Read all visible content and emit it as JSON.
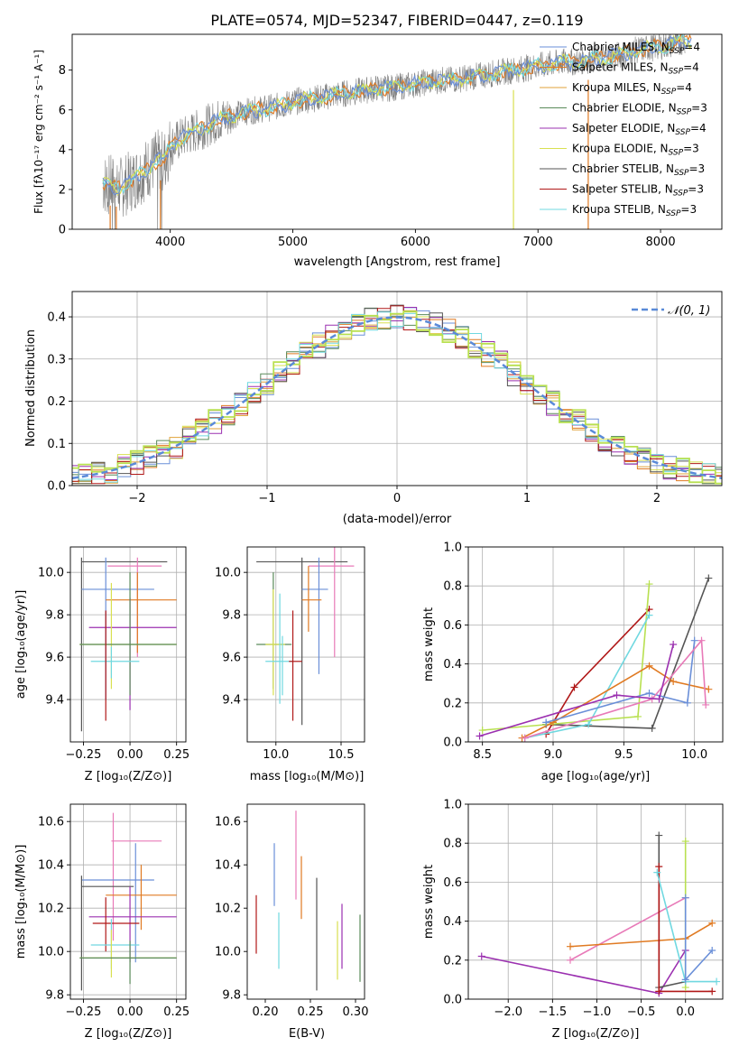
{
  "figure_title": "PLATE=0574, MJD=52347, FIBERID=0447, z=0.119",
  "colors": {
    "chabrier_miles": "#6a8fd8",
    "salpeter_miles": "#e07a22",
    "kroupa_miles": "#e0a23a",
    "chabrier_elodie": "#5a8a5a",
    "salpeter_elodie": "#9b30b0",
    "kroupa_elodie": "#d8e050",
    "chabrier_stelib": "#555555",
    "salpeter_stelib": "#b01818",
    "kroupa_stelib": "#70d8e0",
    "pink": "#e87ab8",
    "lime": "#b8e050",
    "data_grey": "#808080",
    "normal": "#5a8ad8"
  },
  "chart_data": [
    {
      "id": "spectrum",
      "type": "line",
      "xlabel": "wavelength [Angstrom, rest frame]",
      "ylabel": "Flux [fλ10⁻¹⁷ erg cm⁻² s⁻¹ A⁻¹]",
      "xlim": [
        3200,
        8500
      ],
      "ylim": [
        0,
        9.8
      ],
      "xticks": [
        "4000",
        "5000",
        "6000",
        "7000",
        "8000"
      ],
      "yticks": [
        "0",
        "2",
        "4",
        "6",
        "8"
      ],
      "data_x": [
        3450,
        3500,
        3600,
        3700,
        3800,
        3900,
        3950,
        4000,
        4100,
        4200,
        4300,
        4400,
        4500,
        4600,
        4700,
        4800,
        4900,
        5000,
        5100,
        5200,
        5300,
        5400,
        5500,
        5600,
        5700,
        5800,
        5900,
        6000,
        6100,
        6200,
        6300,
        6400,
        6500,
        6600,
        6700,
        6800,
        6900,
        7000,
        7100,
        7200,
        7300,
        7400,
        7500,
        7600,
        7700,
        7800,
        7900,
        8000,
        8100,
        8200
      ],
      "data_y": [
        2.3,
        2.2,
        2.1,
        2.5,
        3.0,
        3.5,
        3.4,
        4.2,
        4.6,
        4.9,
        5.2,
        5.5,
        5.7,
        5.9,
        6.0,
        6.1,
        6.2,
        6.4,
        6.5,
        6.6,
        6.7,
        6.8,
        6.9,
        7.0,
        7.1,
        7.1,
        7.2,
        7.3,
        7.4,
        7.5,
        7.5,
        7.6,
        7.7,
        7.8,
        7.9,
        8.0,
        8.1,
        8.2,
        8.3,
        8.4,
        8.4,
        8.5,
        8.6,
        8.7,
        8.8,
        9.0,
        9.1,
        9.2,
        9.3,
        9.5
      ],
      "legend": [
        {
          "label": "Chabrier MILES, N",
          "sub": "SSP",
          "tail": "=4",
          "color": "chabrier_miles"
        },
        {
          "label": "Salpeter MILES, N",
          "sub": "SSP",
          "tail": "=4",
          "color": "salpeter_miles"
        },
        {
          "label": "Kroupa MILES, N",
          "sub": "SSP",
          "tail": "=4",
          "color": "kroupa_miles"
        },
        {
          "label": "Chabrier ELODIE, N",
          "sub": "SSP",
          "tail": "=3",
          "color": "chabrier_elodie"
        },
        {
          "label": "Salpeter ELODIE, N",
          "sub": "SSP",
          "tail": "=4",
          "color": "salpeter_elodie"
        },
        {
          "label": "Kroupa ELODIE, N",
          "sub": "SSP",
          "tail": "=3",
          "color": "kroupa_elodie"
        },
        {
          "label": "Chabrier STELIB, N",
          "sub": "SSP",
          "tail": "=3",
          "color": "chabrier_stelib"
        },
        {
          "label": "Salpeter STELIB, N",
          "sub": "SSP",
          "tail": "=3",
          "color": "salpeter_stelib"
        },
        {
          "label": "Kroupa STELIB, N",
          "sub": "SSP",
          "tail": "=3",
          "color": "kroupa_stelib"
        }
      ]
    },
    {
      "id": "residuals",
      "type": "histogram",
      "xlabel": "(data-model)/error",
      "ylabel": "Normed distribution",
      "xlim": [
        -2.5,
        2.5
      ],
      "ylim": [
        0,
        0.46
      ],
      "xticks": [
        "−2",
        "−1",
        "0",
        "1",
        "2"
      ],
      "yticks": [
        "0.0",
        "0.1",
        "0.2",
        "0.3",
        "0.4"
      ],
      "legend": "𝒩(0, 1)",
      "grid": true
    },
    {
      "id": "age_vs_Z",
      "type": "scatter",
      "xlabel": "Z [log₁₀(Z/Z⊙)]",
      "ylabel": "age  [log₁₀(age/yr)]",
      "xlim": [
        -0.32,
        0.3
      ],
      "ylim": [
        9.2,
        10.12
      ],
      "xticks": [
        "−0.25",
        "0.00",
        "0.25"
      ],
      "yticks": [
        "9.4",
        "9.6",
        "9.8",
        "10.0"
      ],
      "grid": true
    },
    {
      "id": "age_vs_mass",
      "type": "scatter",
      "xlabel": "mass [log₁₀(M/M⊙)]",
      "ylabel": "",
      "xlim": [
        9.78,
        10.68
      ],
      "ylim": [
        9.2,
        10.12
      ],
      "xticks": [
        "10.0",
        "10.5"
      ],
      "yticks": [
        "9.4",
        "9.6",
        "9.8",
        "10.0"
      ],
      "grid": true
    },
    {
      "id": "weight_vs_age",
      "type": "line",
      "xlabel": "age  [log₁₀(age/yr)]",
      "ylabel": "mass weight",
      "xlim": [
        8.4,
        10.2
      ],
      "ylim": [
        0,
        1
      ],
      "xticks": [
        "8.5",
        "9.0",
        "9.5",
        "10.0"
      ],
      "yticks": [
        "0.0",
        "0.2",
        "0.4",
        "0.6",
        "0.8",
        "1.0"
      ],
      "grid": true
    },
    {
      "id": "mass_vs_Z",
      "type": "scatter",
      "xlabel": "Z [log₁₀(Z/Z⊙)]",
      "ylabel": "mass [log₁₀(M/M⊙)]",
      "xlim": [
        -0.32,
        0.3
      ],
      "ylim": [
        9.78,
        10.68
      ],
      "xticks": [
        "−0.25",
        "0.00",
        "0.25"
      ],
      "yticks": [
        "9.8",
        "10.0",
        "10.2",
        "10.4",
        "10.6"
      ],
      "grid": true
    },
    {
      "id": "mass_vs_ebv",
      "type": "scatter",
      "xlabel": "E(B-V)",
      "ylabel": "",
      "xlim": [
        0.18,
        0.31
      ],
      "ylim": [
        9.78,
        10.68
      ],
      "xticks": [
        "0.20",
        "0.25",
        "0.30"
      ],
      "yticks": [
        "9.8",
        "10.0",
        "10.2",
        "10.4",
        "10.6"
      ],
      "grid": false
    },
    {
      "id": "weight_vs_Z",
      "type": "line",
      "xlabel": "Z [log₁₀(Z/Z⊙)]",
      "ylabel": "mass weight",
      "xlim": [
        -2.45,
        0.42
      ],
      "ylim": [
        0,
        1
      ],
      "xticks": [
        "−2.0",
        "−1.5",
        "−1.0",
        "−0.5",
        "0.0"
      ],
      "yticks": [
        "0.0",
        "0.2",
        "0.4",
        "0.6",
        "0.8",
        "1.0"
      ],
      "grid": true
    }
  ],
  "errorbars": {
    "age_vs_Z": [
      {
        "c": "chabrier_stelib",
        "x": -0.26,
        "y": 10.05,
        "xe": [
          -0.26,
          0.2
        ],
        "ye": [
          9.25,
          10.07
        ]
      },
      {
        "c": "pink",
        "x": 0.04,
        "y": 10.03,
        "xe": [
          -0.12,
          0.17
        ],
        "ye": [
          9.6,
          10.07
        ]
      },
      {
        "c": "chabrier_miles",
        "x": -0.13,
        "y": 9.92,
        "xe": [
          -0.26,
          0.13
        ],
        "ye": [
          9.4,
          10.07
        ]
      },
      {
        "c": "salpeter_miles",
        "x": 0.04,
        "y": 9.87,
        "xe": [
          -0.13,
          0.25
        ],
        "ye": [
          9.62,
          10.0
        ]
      },
      {
        "c": "salpeter_elodie",
        "x": 0.0,
        "y": 9.74,
        "xe": [
          -0.22,
          0.25
        ],
        "ye": [
          9.35,
          9.88
        ]
      },
      {
        "c": "kroupa_elodie",
        "x": -0.1,
        "y": 9.66,
        "xe": [
          -0.27,
          0.25
        ],
        "ye": [
          9.45,
          9.95
        ]
      },
      {
        "c": "chabrier_elodie",
        "x": 0.0,
        "y": 9.66,
        "xe": [
          -0.27,
          0.25
        ],
        "ye": [
          9.42,
          10.0
        ]
      },
      {
        "c": "kroupa_stelib",
        "x": -0.1,
        "y": 9.58,
        "xe": [
          -0.21,
          0.05
        ],
        "ye": [
          9.5,
          9.65
        ]
      },
      {
        "c": "salpeter_stelib",
        "x": -0.13,
        "y": 9.45,
        "xe": [
          -0.13,
          -0.13
        ],
        "ye": [
          9.3,
          9.82
        ]
      }
    ],
    "age_vs_mass": [
      {
        "c": "chabrier_stelib",
        "x": 10.2,
        "y": 10.05,
        "xe": [
          9.85,
          10.55
        ],
        "ye": [
          9.28,
          10.07
        ]
      },
      {
        "c": "pink",
        "x": 10.45,
        "y": 10.03,
        "xe": [
          10.25,
          10.6
        ],
        "ye": [
          9.6,
          10.12
        ]
      },
      {
        "c": "chabrier_miles",
        "x": 10.33,
        "y": 9.92,
        "xe": [
          10.2,
          10.4
        ],
        "ye": [
          9.52,
          10.07
        ]
      },
      {
        "c": "salpeter_miles",
        "x": 10.25,
        "y": 9.87,
        "xe": [
          10.2,
          10.35
        ],
        "ye": [
          9.72,
          10.03
        ]
      },
      {
        "c": "chabrier_elodie",
        "x": 9.98,
        "y": 9.66,
        "xe": [
          9.85,
          10.12
        ],
        "ye": [
          9.45,
          10.0
        ]
      },
      {
        "c": "kroupa_elodie",
        "x": 9.98,
        "y": 9.66,
        "xe": [
          9.92,
          10.07
        ],
        "ye": [
          9.42,
          9.92
        ]
      },
      {
        "c": "kroupa_stelib",
        "x": 10.05,
        "y": 9.58,
        "xe": [
          9.92,
          10.13
        ],
        "ye": [
          9.42,
          9.7
        ]
      },
      {
        "c": "salpeter_stelib",
        "x": 10.13,
        "y": 9.58,
        "xe": [
          10.1,
          10.2
        ],
        "ye": [
          9.3,
          9.82
        ]
      },
      {
        "c": "kroupa_stelib",
        "x": 10.03,
        "y": 9.58,
        "xe": [
          10.03,
          10.03
        ],
        "ye": [
          9.38,
          9.9
        ]
      }
    ],
    "mass_vs_Z": [
      {
        "c": "pink",
        "x": -0.09,
        "y": 10.51,
        "xe": [
          -0.1,
          0.17
        ],
        "ye": [
          10.05,
          10.64
        ]
      },
      {
        "c": "chabrier_miles",
        "x": 0.03,
        "y": 10.33,
        "xe": [
          -0.26,
          0.13
        ],
        "ye": [
          9.95,
          10.5
        ]
      },
      {
        "c": "chabrier_stelib",
        "x": -0.26,
        "y": 10.3,
        "xe": [
          -0.26,
          0.02
        ],
        "ye": [
          9.82,
          10.35
        ]
      },
      {
        "c": "salpeter_miles",
        "x": 0.06,
        "y": 10.26,
        "xe": [
          -0.13,
          0.25
        ],
        "ye": [
          10.1,
          10.4
        ]
      },
      {
        "c": "salpeter_elodie",
        "x": 0.0,
        "y": 10.16,
        "xe": [
          -0.22,
          0.25
        ],
        "ye": [
          9.95,
          10.3
        ]
      },
      {
        "c": "salpeter_stelib",
        "x": -0.13,
        "y": 10.13,
        "xe": [
          -0.2,
          0.05
        ],
        "ye": [
          10.0,
          10.25
        ]
      },
      {
        "c": "kroupa_stelib",
        "x": -0.1,
        "y": 10.03,
        "xe": [
          -0.21,
          0.05
        ],
        "ye": [
          9.92,
          10.15
        ]
      },
      {
        "c": "kroupa_elodie",
        "x": -0.1,
        "y": 9.97,
        "xe": [
          -0.27,
          0.25
        ],
        "ye": [
          9.88,
          10.1
        ]
      },
      {
        "c": "chabrier_elodie",
        "x": 0.0,
        "y": 9.97,
        "xe": [
          -0.27,
          0.25
        ],
        "ye": [
          9.85,
          10.05
        ]
      }
    ],
    "mass_vs_ebv": [
      {
        "c": "salpeter_stelib",
        "x": 0.19,
        "y": 10.12,
        "xe": [
          0.19,
          0.19
        ],
        "ye": [
          9.99,
          10.26
        ]
      },
      {
        "c": "chabrier_miles",
        "x": 0.21,
        "y": 10.35,
        "xe": [
          0.21,
          0.21
        ],
        "ye": [
          10.21,
          10.5
        ]
      },
      {
        "c": "kroupa_stelib",
        "x": 0.215,
        "y": 10.05,
        "xe": [
          0.215,
          0.215
        ],
        "ye": [
          9.92,
          10.18
        ]
      },
      {
        "c": "pink",
        "x": 0.234,
        "y": 10.45,
        "xe": [
          0.234,
          0.234
        ],
        "ye": [
          10.24,
          10.65
        ]
      },
      {
        "c": "salpeter_miles",
        "x": 0.24,
        "y": 10.29,
        "xe": [
          0.24,
          0.24
        ],
        "ye": [
          10.15,
          10.44
        ]
      },
      {
        "c": "chabrier_stelib",
        "x": 0.257,
        "y": 10.06,
        "xe": [
          0.257,
          0.257
        ],
        "ye": [
          9.82,
          10.34
        ]
      },
      {
        "c": "kroupa_elodie",
        "x": 0.28,
        "y": 10.0,
        "xe": [
          0.28,
          0.28
        ],
        "ye": [
          9.87,
          10.14
        ]
      },
      {
        "c": "salpeter_elodie",
        "x": 0.285,
        "y": 10.07,
        "xe": [
          0.285,
          0.285
        ],
        "ye": [
          9.92,
          10.22
        ]
      },
      {
        "c": "chabrier_elodie",
        "x": 0.305,
        "y": 10.01,
        "xe": [
          0.305,
          0.305
        ],
        "ye": [
          9.86,
          10.17
        ]
      }
    ]
  },
  "weight_lines": {
    "weight_vs_age": [
      {
        "c": "chabrier_stelib",
        "pts": [
          [
            8.95,
            0.09
          ],
          [
            9.7,
            0.07
          ],
          [
            10.1,
            0.84
          ]
        ]
      },
      {
        "c": "salpeter_stelib",
        "pts": [
          [
            8.95,
            0.04
          ],
          [
            9.15,
            0.28
          ],
          [
            9.68,
            0.68
          ]
        ]
      },
      {
        "c": "lime",
        "pts": [
          [
            8.5,
            0.06
          ],
          [
            9.6,
            0.13
          ],
          [
            9.68,
            0.81
          ]
        ]
      },
      {
        "c": "kroupa_stelib",
        "pts": [
          [
            8.8,
            0.02
          ],
          [
            9.25,
            0.09
          ],
          [
            9.68,
            0.65
          ]
        ]
      },
      {
        "c": "salpeter_miles",
        "pts": [
          [
            8.78,
            0.02
          ],
          [
            9.0,
            0.1
          ],
          [
            9.68,
            0.39
          ],
          [
            9.85,
            0.31
          ],
          [
            10.1,
            0.27
          ]
        ]
      },
      {
        "c": "chabrier_miles",
        "pts": [
          [
            8.95,
            0.1
          ],
          [
            9.68,
            0.25
          ],
          [
            9.95,
            0.2
          ],
          [
            10.0,
            0.52
          ]
        ]
      },
      {
        "c": "pink",
        "pts": [
          [
            8.8,
            0.02
          ],
          [
            9.7,
            0.22
          ],
          [
            10.05,
            0.52
          ],
          [
            10.08,
            0.19
          ]
        ]
      },
      {
        "c": "salpeter_elodie",
        "pts": [
          [
            8.48,
            0.03
          ],
          [
            9.45,
            0.24
          ],
          [
            9.75,
            0.22
          ],
          [
            9.85,
            0.5
          ]
        ]
      }
    ],
    "weight_vs_Z": [
      {
        "c": "salpeter_elodie",
        "pts": [
          [
            -2.3,
            0.22
          ],
          [
            -0.3,
            0.03
          ],
          [
            0.0,
            0.25
          ]
        ]
      },
      {
        "c": "pink",
        "pts": [
          [
            -1.3,
            0.2
          ],
          [
            0.0,
            0.52
          ]
        ]
      },
      {
        "c": "salpeter_miles",
        "pts": [
          [
            -1.3,
            0.27
          ],
          [
            0.0,
            0.31
          ],
          [
            0.3,
            0.39
          ]
        ]
      },
      {
        "c": "chabrier_stelib",
        "pts": [
          [
            -0.3,
            0.84
          ],
          [
            -0.3,
            0.06
          ],
          [
            0.0,
            0.09
          ]
        ]
      },
      {
        "c": "salpeter_stelib",
        "pts": [
          [
            -0.3,
            0.68
          ],
          [
            -0.3,
            0.04
          ],
          [
            0.3,
            0.04
          ]
        ]
      },
      {
        "c": "lime",
        "pts": [
          [
            0.0,
            0.81
          ],
          [
            0.0,
            0.06
          ]
        ]
      },
      {
        "c": "kroupa_stelib",
        "pts": [
          [
            -0.32,
            0.65
          ],
          [
            0.0,
            0.09
          ],
          [
            0.35,
            0.09
          ]
        ]
      },
      {
        "c": "chabrier_miles",
        "pts": [
          [
            0.0,
            0.52
          ],
          [
            0.0,
            0.1
          ],
          [
            0.3,
            0.25
          ]
        ]
      }
    ]
  }
}
